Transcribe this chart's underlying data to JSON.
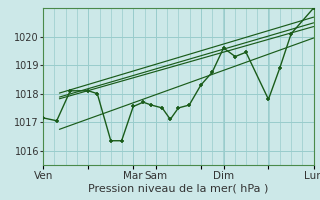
{
  "bg_color": "#cce8e8",
  "grid_color": "#99cccc",
  "line_color": "#1a5c1a",
  "xlabel": "Pression niveau de la mer( hPa )",
  "xlabel_fontsize": 8,
  "ylim": [
    1015.5,
    1021.0
  ],
  "yticks": [
    1016,
    1017,
    1018,
    1019,
    1020
  ],
  "xtick_labels": [
    "Ven",
    "",
    "Mar",
    "Sam",
    "",
    "Dim",
    "",
    "Lun"
  ],
  "xtick_positions": [
    0.0,
    0.167,
    0.333,
    0.417,
    0.583,
    0.667,
    0.833,
    1.0
  ],
  "trend_lines": [
    {
      "x": [
        0.06,
        1.0
      ],
      "y": [
        1017.82,
        1020.35
      ]
    },
    {
      "x": [
        0.06,
        1.0
      ],
      "y": [
        1017.88,
        1020.48
      ]
    },
    {
      "x": [
        0.06,
        1.0
      ],
      "y": [
        1018.02,
        1020.68
      ]
    },
    {
      "x": [
        0.06,
        1.0
      ],
      "y": [
        1016.75,
        1019.95
      ]
    }
  ],
  "wiggly_x": [
    0.0,
    0.05,
    0.1,
    0.167,
    0.2,
    0.25,
    0.29,
    0.333,
    0.37,
    0.4,
    0.44,
    0.47,
    0.5,
    0.54,
    0.583,
    0.625,
    0.667,
    0.71,
    0.75,
    0.833,
    0.875,
    0.917,
    1.0
  ],
  "wiggly_y": [
    1017.15,
    1017.05,
    1018.1,
    1018.1,
    1018.0,
    1016.35,
    1016.35,
    1017.55,
    1017.7,
    1017.6,
    1017.5,
    1017.1,
    1017.5,
    1017.6,
    1018.3,
    1018.75,
    1019.6,
    1019.3,
    1019.45,
    1017.8,
    1018.9,
    1020.1,
    1021.0
  ]
}
